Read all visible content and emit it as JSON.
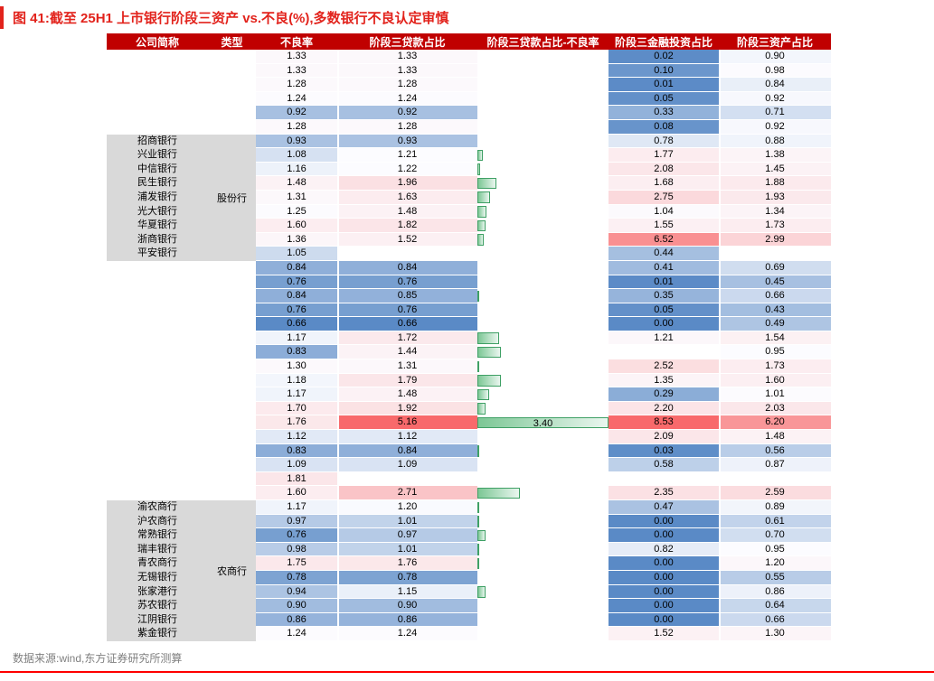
{
  "title": "图 41:截至 25H1 上市银行阶段三资产 vs.不良(%),多数银行不良认定审慎",
  "source": "数据来源:wind,东方证券研究所测算",
  "colors": {
    "title_red": "#E2231C",
    "header_bg": "#C00000",
    "header_text": "#FFFFFF",
    "group_bg": "#D9D9D9",
    "scale_blue": "#5A8AC6",
    "scale_white": "#FCFCFF",
    "scale_red": "#F8696B",
    "bar_border": "#3FA065",
    "bar_fill_left": "#7CC795",
    "bar_fill_right": "#EAF6EF",
    "source_text": "#7F7F7F",
    "bottom_rule": "#FF0000"
  },
  "chart_data": {
    "type": "table",
    "columns": [
      "公司简称",
      "类型",
      "不良率",
      "阶段三贷款占比",
      "阶段三贷款占比-不良率",
      "阶段三金融投资占比",
      "阶段三资产占比"
    ],
    "bar_column": {
      "max": 3.4,
      "note": "green data bars = 阶段三贷款占比 - 不良率"
    },
    "color_scales": {
      "npl_loan": {
        "min": 0.66,
        "mid": 1.21,
        "max": 5.16
      },
      "invest_asset": {
        "min": 0.0,
        "mid": 0.95,
        "max": 8.53
      }
    },
    "groups": [
      {
        "label": "",
        "start": 0,
        "end": 5
      },
      {
        "label": "股份行",
        "start": 6,
        "end": 14
      },
      {
        "label": "",
        "start": 15,
        "end": 31
      },
      {
        "label": "农商行",
        "start": 32,
        "end": 41
      }
    ],
    "rows": [
      {
        "name": "",
        "npl": "1.33",
        "loan": "1.33",
        "bar": 0,
        "invest": "0.02",
        "asset": "0.90"
      },
      {
        "name": "",
        "npl": "1.33",
        "loan": "1.33",
        "bar": 0,
        "invest": "0.10",
        "asset": "0.98"
      },
      {
        "name": "",
        "npl": "1.28",
        "loan": "1.28",
        "bar": 0,
        "invest": "0.01",
        "asset": "0.84"
      },
      {
        "name": "",
        "npl": "1.24",
        "loan": "1.24",
        "bar": 0,
        "invest": "0.05",
        "asset": "0.92"
      },
      {
        "name": "",
        "npl": "0.92",
        "loan": "0.92",
        "bar": 0,
        "invest": "0.33",
        "asset": "0.71"
      },
      {
        "name": "",
        "npl": "1.28",
        "loan": "1.28",
        "bar": 0,
        "invest": "0.08",
        "asset": "0.92"
      },
      {
        "name": "招商银行",
        "npl": "0.93",
        "loan": "0.93",
        "bar": 0,
        "invest": "0.78",
        "asset": "0.88"
      },
      {
        "name": "兴业银行",
        "npl": "1.08",
        "loan": "1.21",
        "bar": 0.13,
        "invest": "1.77",
        "asset": "1.38"
      },
      {
        "name": "中信银行",
        "npl": "1.16",
        "loan": "1.22",
        "bar": 0.06,
        "invest": "2.08",
        "asset": "1.45"
      },
      {
        "name": "民生银行",
        "npl": "1.48",
        "loan": "1.96",
        "bar": 0.48,
        "invest": "1.68",
        "asset": "1.88"
      },
      {
        "name": "浦发银行",
        "npl": "1.31",
        "loan": "1.63",
        "bar": 0.32,
        "invest": "2.75",
        "asset": "1.93"
      },
      {
        "name": "光大银行",
        "npl": "1.25",
        "loan": "1.48",
        "bar": 0.23,
        "invest": "1.04",
        "asset": "1.34"
      },
      {
        "name": "华夏银行",
        "npl": "1.60",
        "loan": "1.82",
        "bar": 0.22,
        "invest": "1.55",
        "asset": "1.73"
      },
      {
        "name": "浙商银行",
        "npl": "1.36",
        "loan": "1.52",
        "bar": 0.16,
        "invest": "6.52",
        "asset": "2.99"
      },
      {
        "name": "平安银行",
        "npl": "1.05",
        "loan": null,
        "bar": 0,
        "invest": "0.44",
        "asset": null
      },
      {
        "name": "",
        "npl": "0.84",
        "loan": "0.84",
        "bar": 0,
        "invest": "0.41",
        "asset": "0.69"
      },
      {
        "name": "",
        "npl": "0.76",
        "loan": "0.76",
        "bar": 0,
        "invest": "0.01",
        "asset": "0.45"
      },
      {
        "name": "",
        "npl": "0.84",
        "loan": "0.85",
        "bar": 0.01,
        "invest": "0.35",
        "asset": "0.66"
      },
      {
        "name": "",
        "npl": "0.76",
        "loan": "0.76",
        "bar": 0,
        "invest": "0.05",
        "asset": "0.43"
      },
      {
        "name": "",
        "npl": "0.66",
        "loan": "0.66",
        "bar": 0,
        "invest": "0.00",
        "asset": "0.49"
      },
      {
        "name": "",
        "npl": "1.17",
        "loan": "1.72",
        "bar": 0.55,
        "invest": "1.21",
        "asset": "1.54"
      },
      {
        "name": "",
        "npl": "0.83",
        "loan": "1.44",
        "bar": 0.61,
        "invest": null,
        "asset": "0.95"
      },
      {
        "name": "",
        "npl": "1.30",
        "loan": "1.31",
        "bar": 0.01,
        "invest": "2.52",
        "asset": "1.73"
      },
      {
        "name": "",
        "npl": "1.18",
        "loan": "1.79",
        "bar": 0.61,
        "invest": "1.35",
        "asset": "1.60"
      },
      {
        "name": "",
        "npl": "1.17",
        "loan": "1.48",
        "bar": 0.31,
        "invest": "0.29",
        "asset": "1.01"
      },
      {
        "name": "",
        "npl": "1.70",
        "loan": "1.92",
        "bar": 0.22,
        "invest": "2.20",
        "asset": "2.03"
      },
      {
        "name": "",
        "npl": "1.76",
        "loan": "5.16",
        "bar": 3.4,
        "bar_label": "3.40",
        "invest": "8.53",
        "asset": "6.20"
      },
      {
        "name": "",
        "npl": "1.12",
        "loan": "1.12",
        "bar": 0,
        "invest": "2.09",
        "asset": "1.48"
      },
      {
        "name": "",
        "npl": "0.83",
        "loan": "0.84",
        "bar": 0.01,
        "invest": "0.03",
        "asset": "0.56"
      },
      {
        "name": "",
        "npl": "1.09",
        "loan": "1.09",
        "bar": 0,
        "invest": "0.58",
        "asset": "0.87"
      },
      {
        "name": "",
        "npl": "1.81",
        "loan": null,
        "bar": 0,
        "invest": null,
        "asset": null
      },
      {
        "name": "",
        "npl": "1.60",
        "loan": "2.71",
        "bar": 1.11,
        "invest": "2.35",
        "asset": "2.59"
      },
      {
        "name": "渝农商行",
        "npl": "1.17",
        "loan": "1.20",
        "bar": 0.03,
        "invest": "0.47",
        "asset": "0.89"
      },
      {
        "name": "沪农商行",
        "npl": "0.97",
        "loan": "1.01",
        "bar": 0.04,
        "invest": "0.00",
        "asset": "0.61"
      },
      {
        "name": "常熟银行",
        "npl": "0.76",
        "loan": "0.97",
        "bar": 0.21,
        "invest": "0.00",
        "asset": "0.70"
      },
      {
        "name": "瑞丰银行",
        "npl": "0.98",
        "loan": "1.01",
        "bar": 0.03,
        "invest": "0.82",
        "asset": "0.95"
      },
      {
        "name": "青农商行",
        "npl": "1.75",
        "loan": "1.76",
        "bar": 0.01,
        "invest": "0.00",
        "asset": "1.20"
      },
      {
        "name": "无锡银行",
        "npl": "0.78",
        "loan": "0.78",
        "bar": 0,
        "invest": "0.00",
        "asset": "0.55"
      },
      {
        "name": "张家港行",
        "npl": "0.94",
        "loan": "1.15",
        "bar": 0.21,
        "invest": "0.00",
        "asset": "0.86"
      },
      {
        "name": "苏农银行",
        "npl": "0.90",
        "loan": "0.90",
        "bar": 0,
        "invest": "0.00",
        "asset": "0.64"
      },
      {
        "name": "江阴银行",
        "npl": "0.86",
        "loan": "0.86",
        "bar": 0,
        "invest": "0.00",
        "asset": "0.66"
      },
      {
        "name": "紫金银行",
        "npl": "1.24",
        "loan": "1.24",
        "bar": 0,
        "invest": "1.52",
        "asset": "1.30"
      }
    ]
  }
}
